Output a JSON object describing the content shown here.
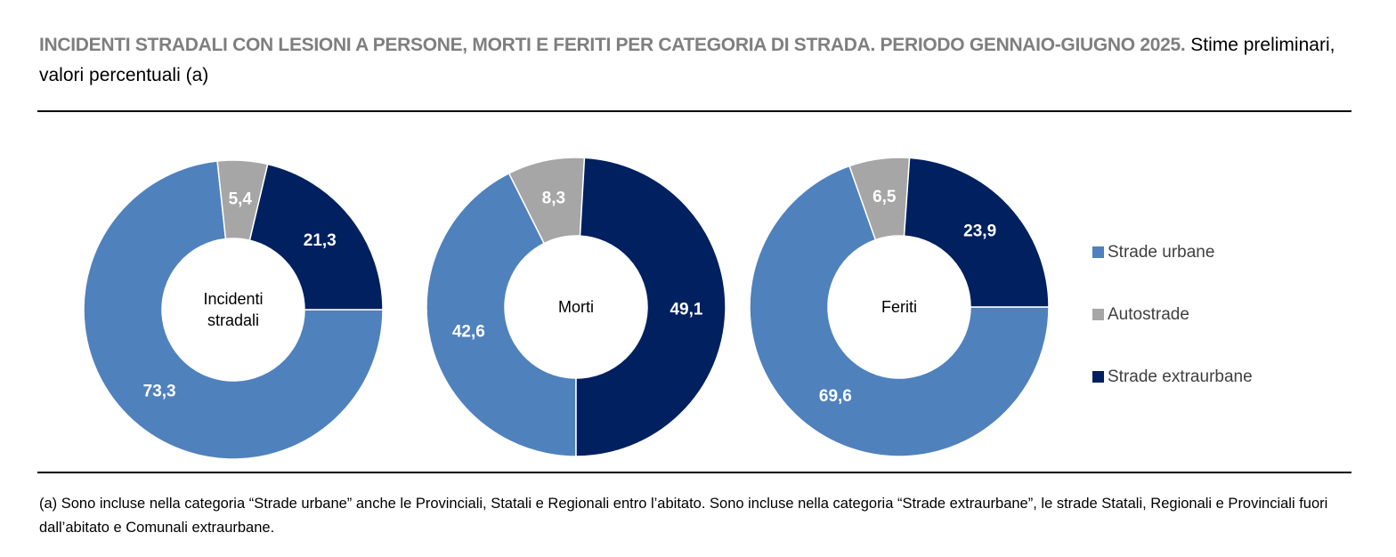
{
  "header": {
    "title_bold": "INCIDENTI STRADALI CON LESIONI A PERSONE, MORTI E FERITI PER CATEGORIA DI STRADA. PERIODO GENNAIO-GIUGNO 2025.",
    "title_normal": "Stime preliminari, valori percentuali (a)"
  },
  "chart_data": [
    {
      "type": "donut",
      "center_label": "Incidenti stradali",
      "start_angle": 90,
      "categories": [
        "Strade urbane",
        "Autostrade",
        "Strade extraurbane"
      ],
      "values": [
        73.3,
        5.4,
        21.3
      ],
      "value_labels": [
        "73,3",
        "5,4",
        "21,3"
      ],
      "colors": [
        "#4f81bd",
        "#a6a6a6",
        "#002060"
      ]
    },
    {
      "type": "donut",
      "center_label": "Morti",
      "start_angle": 180,
      "categories": [
        "Strade urbane",
        "Autostrade",
        "Strade extraurbane"
      ],
      "values": [
        42.6,
        8.3,
        49.1
      ],
      "value_labels": [
        "42,6",
        "8,3",
        "49,1"
      ],
      "colors": [
        "#4f81bd",
        "#a6a6a6",
        "#002060"
      ]
    },
    {
      "type": "donut",
      "center_label": "Feriti",
      "start_angle": 90,
      "categories": [
        "Strade urbane",
        "Autostrade",
        "Strade extraurbane"
      ],
      "values": [
        69.6,
        6.5,
        23.9
      ],
      "value_labels": [
        "69,6",
        "6,5",
        "23,9"
      ],
      "colors": [
        "#4f81bd",
        "#a6a6a6",
        "#002060"
      ]
    }
  ],
  "note": "(a) Sono incluse nella categoria “Strade urbane” anche le Provinciali, Statali e Regionali entro l’abitato. Sono incluse nella categoria “Strade extraurbane”, le strade Statali, Regionali e Provinciali fuori dall’abitato e Comunali extraurbane."
}
